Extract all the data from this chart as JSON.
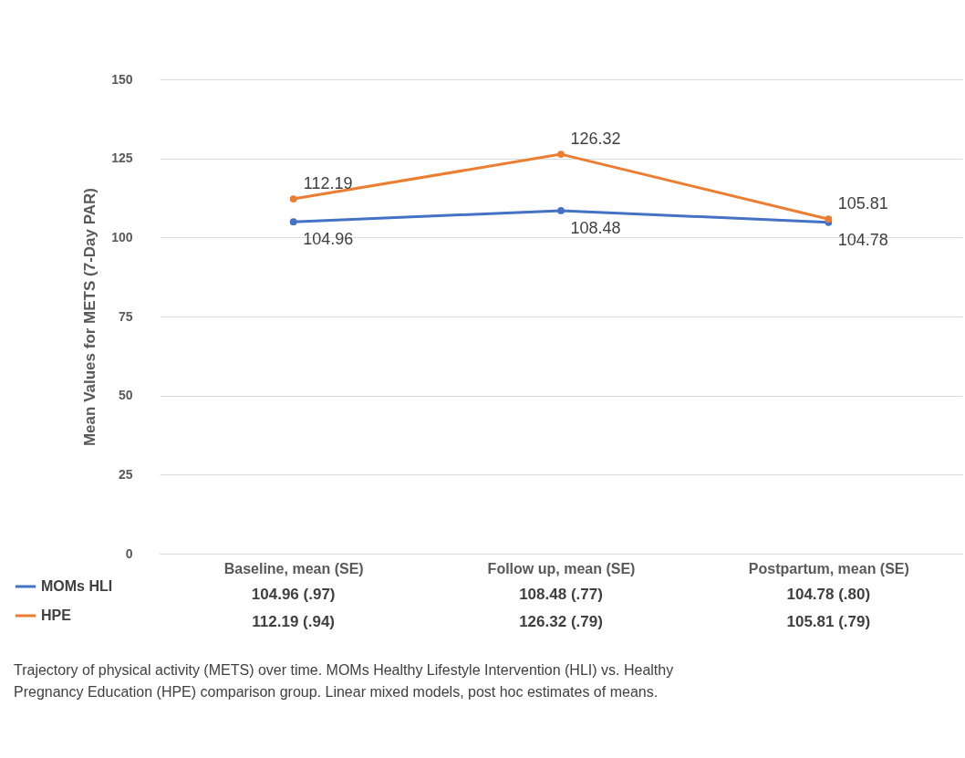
{
  "chart_data": {
    "type": "line",
    "ylabel": "Mean Values for METS (7-Day PAR)",
    "categories": [
      "Baseline, mean (SE)",
      "Follow up, mean (SE)",
      "Postpartum, mean (SE)"
    ],
    "series": [
      {
        "name": "MOMs HLI",
        "color": "#4472c4",
        "values": [
          104.96,
          108.48,
          104.78
        ],
        "value_labels": [
          "104.96 (.97)",
          "108.48 (.77)",
          "104.78 (.80)"
        ]
      },
      {
        "name": "HPE",
        "color": "#ed7d31",
        "values": [
          112.19,
          126.32,
          105.81
        ],
        "value_labels": [
          "112.19 (.94)",
          "126.32 (.79)",
          "105.81 (.79)"
        ]
      }
    ],
    "ylim": [
      0,
      150
    ],
    "yticks": [
      0,
      25,
      50,
      75,
      100,
      125,
      150
    ],
    "grid": "y",
    "marker": "circle",
    "line_style": "solid",
    "legend": "bottom left",
    "annotations": [
      {
        "text": "112.19",
        "x": "Baseline, mean (SE)",
        "y": 112.19
      },
      {
        "text": "104.96",
        "x": "Baseline, mean (SE)",
        "y": 104.96
      },
      {
        "text": "126.32",
        "x": "Follow up, mean (SE)",
        "y": 126.32
      },
      {
        "text": "108.48",
        "x": "Follow up, mean (SE)",
        "y": 108.48
      },
      {
        "text": "105.81",
        "x": "Postpartum, mean (SE)",
        "y": 105.81
      },
      {
        "text": "104.78",
        "x": "Postpartum, mean (SE)",
        "y": 104.78
      },
      "Trajectory of physical activity (METS) over time.  MOMs Healthy Lifestyle Intervention (HLI) vs. Healthy Pregnancy Education (HPE) comparison group.  Linear mixed models, post hoc estimates of means."
    ]
  }
}
